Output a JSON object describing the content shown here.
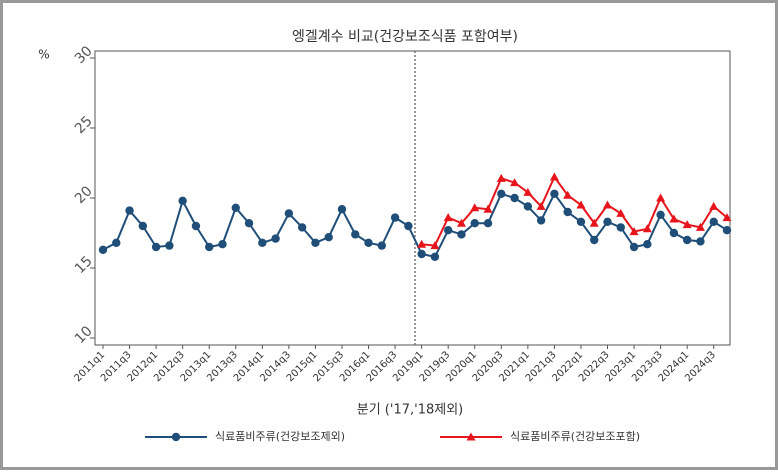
{
  "chart_data": {
    "type": "line",
    "title": "엥겔계수 비교(건강보조식품 포함여부)",
    "ylabel": "%",
    "xlabel": "분기 ('17,'18제외)",
    "categories": [
      "2011q1",
      null,
      "2011q3",
      null,
      "2012q1",
      null,
      "2012q3",
      null,
      "2013q1",
      null,
      "2013q3",
      null,
      "2014q1",
      null,
      "2014q3",
      null,
      "2015q1",
      null,
      "2015q3",
      null,
      "2016q1",
      null,
      "2016q3",
      null,
      "2019q1",
      null,
      "2019q3",
      null,
      "2020q1",
      null,
      "2020q3",
      null,
      "2021q1",
      null,
      "2021q3",
      null,
      "2022q1",
      null,
      "2022q3",
      null,
      "2023q1",
      null,
      "2023q3",
      null,
      "2024q1",
      null,
      "2024q3",
      null
    ],
    "series": [
      {
        "name": "식료품비주류(건강보조제외)",
        "color": "#1f4e79",
        "marker": "circle",
        "values": [
          16.3,
          16.8,
          19.1,
          18.0,
          16.5,
          16.6,
          19.8,
          18.0,
          16.5,
          16.7,
          19.3,
          18.2,
          16.8,
          17.1,
          18.9,
          17.9,
          16.8,
          17.2,
          19.2,
          17.4,
          16.8,
          16.6,
          18.6,
          18.0,
          16.0,
          15.8,
          17.7,
          17.4,
          18.2,
          18.2,
          20.3,
          20.0,
          19.4,
          18.4,
          20.3,
          19.0,
          18.3,
          17.0,
          18.3,
          17.9,
          16.5,
          16.7,
          18.8,
          17.5,
          17.0,
          16.9,
          18.3,
          17.7
        ]
      },
      {
        "name": "식료품비주류(건강보조포함)",
        "color": "#e8141c",
        "marker": "triangle",
        "values": [
          null,
          null,
          null,
          null,
          null,
          null,
          null,
          null,
          null,
          null,
          null,
          null,
          null,
          null,
          null,
          null,
          null,
          null,
          null,
          null,
          null,
          null,
          null,
          null,
          16.7,
          16.6,
          18.6,
          18.2,
          19.3,
          19.2,
          21.4,
          21.1,
          20.4,
          19.4,
          21.5,
          20.2,
          19.5,
          18.2,
          19.5,
          18.9,
          17.6,
          17.8,
          20.0,
          18.5,
          18.1,
          17.9,
          19.4,
          18.6
        ]
      }
    ],
    "ylim": [
      9.5,
      30.5
    ],
    "yticks": [
      10,
      15,
      20,
      25,
      30
    ],
    "grid": false,
    "legend": "bottom"
  }
}
